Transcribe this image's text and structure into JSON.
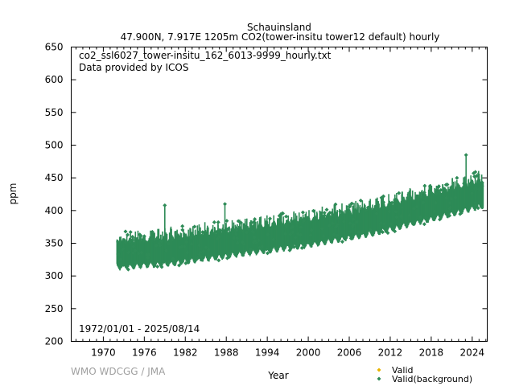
{
  "chart_data": {
    "type": "scatter",
    "station": "Schauinsland",
    "subtitle": "47.900N, 7.917E 1205m    CO2(tower-insitu tower12 default) hourly",
    "filename": "co2_ssl6027_tower-insitu_162_6013-9999_hourly.txt",
    "provider": "Data provided by ICOS",
    "period": "1972/01/01 - 2025/08/14",
    "xlabel": "Year",
    "ylabel": "ppm",
    "xlim": [
      1965.3,
      2026.2
    ],
    "ylim": [
      200,
      650
    ],
    "x_ticks": [
      1970,
      1976,
      1982,
      1988,
      1994,
      2000,
      2006,
      2012,
      2018,
      2024
    ],
    "y_ticks": [
      200,
      250,
      300,
      350,
      400,
      450,
      500,
      550,
      600,
      650
    ],
    "legend": [
      {
        "label": "Valid",
        "color": "#e8b400"
      },
      {
        "label": "Valid(background)",
        "color": "#2e8b57"
      }
    ],
    "series": [
      {
        "name": "Valid(background)",
        "color": "#2e8b57",
        "data_start": 1972.0,
        "data_end": 2025.62,
        "baseline_points": [
          [
            1972,
            332
          ],
          [
            1980,
            338
          ],
          [
            1990,
            352
          ],
          [
            2000,
            366
          ],
          [
            2010,
            385
          ],
          [
            2020,
            411
          ],
          [
            2025.6,
            426
          ]
        ],
        "band_low_offset": -20,
        "band_high_offset": 22,
        "spikes": [
          [
            1979.0,
            408
          ],
          [
            1987.8,
            410
          ],
          [
            2023.1,
            485
          ]
        ]
      },
      {
        "name": "Valid",
        "color": "#e8b400",
        "points": []
      }
    ],
    "credit": "WMO WDCGG / JMA"
  }
}
